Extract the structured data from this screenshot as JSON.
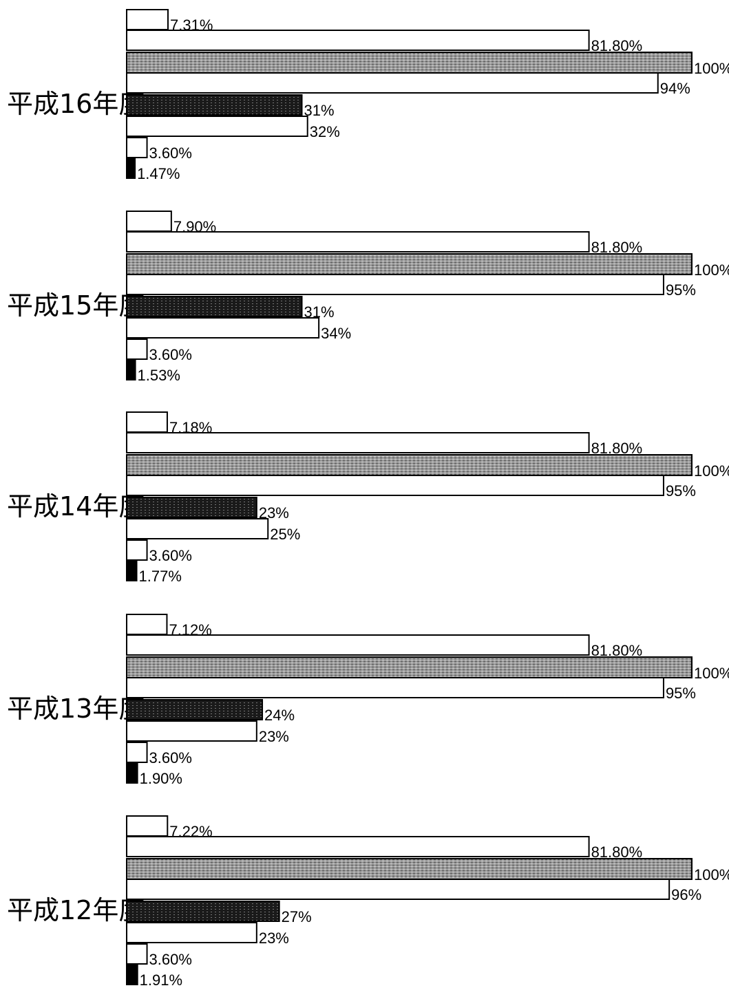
{
  "chart_data": {
    "type": "bar",
    "orientation": "horizontal",
    "groups": [
      {
        "label": "平成16年度",
        "bars": [
          {
            "value": 7.31,
            "label": "7.31%",
            "style": "white"
          },
          {
            "value": 81.8,
            "label": "81.80%",
            "style": "white"
          },
          {
            "value": 100,
            "label": "100%",
            "style": "gray"
          },
          {
            "value": 94,
            "label": "94%",
            "style": "white"
          },
          {
            "value": 31,
            "label": "31%",
            "style": "dark"
          },
          {
            "value": 32,
            "label": "32%",
            "style": "white"
          },
          {
            "value": 3.6,
            "label": "3.60%",
            "style": "white"
          },
          {
            "value": 1.47,
            "label": "1.47%",
            "style": "black"
          }
        ]
      },
      {
        "label": "平成15年度",
        "bars": [
          {
            "value": 7.9,
            "label": "7.90%",
            "style": "white"
          },
          {
            "value": 81.8,
            "label": "81.80%",
            "style": "white"
          },
          {
            "value": 100,
            "label": "100%",
            "style": "gray"
          },
          {
            "value": 95,
            "label": "95%",
            "style": "white"
          },
          {
            "value": 31,
            "label": "31%",
            "style": "dark"
          },
          {
            "value": 34,
            "label": "34%",
            "style": "white"
          },
          {
            "value": 3.6,
            "label": "3.60%",
            "style": "white"
          },
          {
            "value": 1.53,
            "label": "1.53%",
            "style": "black"
          }
        ]
      },
      {
        "label": "平成14年度",
        "bars": [
          {
            "value": 7.18,
            "label": "7.18%",
            "style": "white"
          },
          {
            "value": 81.8,
            "label": "81.80%",
            "style": "white"
          },
          {
            "value": 100,
            "label": "100%",
            "style": "gray"
          },
          {
            "value": 95,
            "label": "95%",
            "style": "white"
          },
          {
            "value": 23,
            "label": "23%",
            "style": "dark"
          },
          {
            "value": 25,
            "label": "25%",
            "style": "white"
          },
          {
            "value": 3.6,
            "label": "3.60%",
            "style": "white"
          },
          {
            "value": 1.77,
            "label": "1.77%",
            "style": "black"
          }
        ]
      },
      {
        "label": "平成13年度",
        "bars": [
          {
            "value": 7.12,
            "label": "7.12%",
            "style": "white"
          },
          {
            "value": 81.8,
            "label": "81.80%",
            "style": "white"
          },
          {
            "value": 100,
            "label": "100%",
            "style": "gray"
          },
          {
            "value": 95,
            "label": "95%",
            "style": "white"
          },
          {
            "value": 24,
            "label": "24%",
            "style": "dark"
          },
          {
            "value": 23,
            "label": "23%",
            "style": "white"
          },
          {
            "value": 3.6,
            "label": "3.60%",
            "style": "white"
          },
          {
            "value": 1.9,
            "label": "1.90%",
            "style": "black"
          }
        ]
      },
      {
        "label": "平成12年度",
        "bars": [
          {
            "value": 7.22,
            "label": "7.22%",
            "style": "white"
          },
          {
            "value": 81.8,
            "label": "81.80%",
            "style": "white"
          },
          {
            "value": 100,
            "label": "100%",
            "style": "gray"
          },
          {
            "value": 96,
            "label": "96%",
            "style": "white"
          },
          {
            "value": 27,
            "label": "27%",
            "style": "dark"
          },
          {
            "value": 23,
            "label": "23%",
            "style": "white"
          },
          {
            "value": 3.6,
            "label": "3.60%",
            "style": "white"
          },
          {
            "value": 1.91,
            "label": "1.91%",
            "style": "black"
          }
        ]
      }
    ],
    "xlim": [
      0,
      100
    ],
    "grid": false,
    "legend": "none"
  },
  "colors": {
    "white": "#ffffff",
    "gray": "#8a8a8a",
    "dark": "#1a1a1a",
    "black": "#000000",
    "stroke": "#000000"
  }
}
